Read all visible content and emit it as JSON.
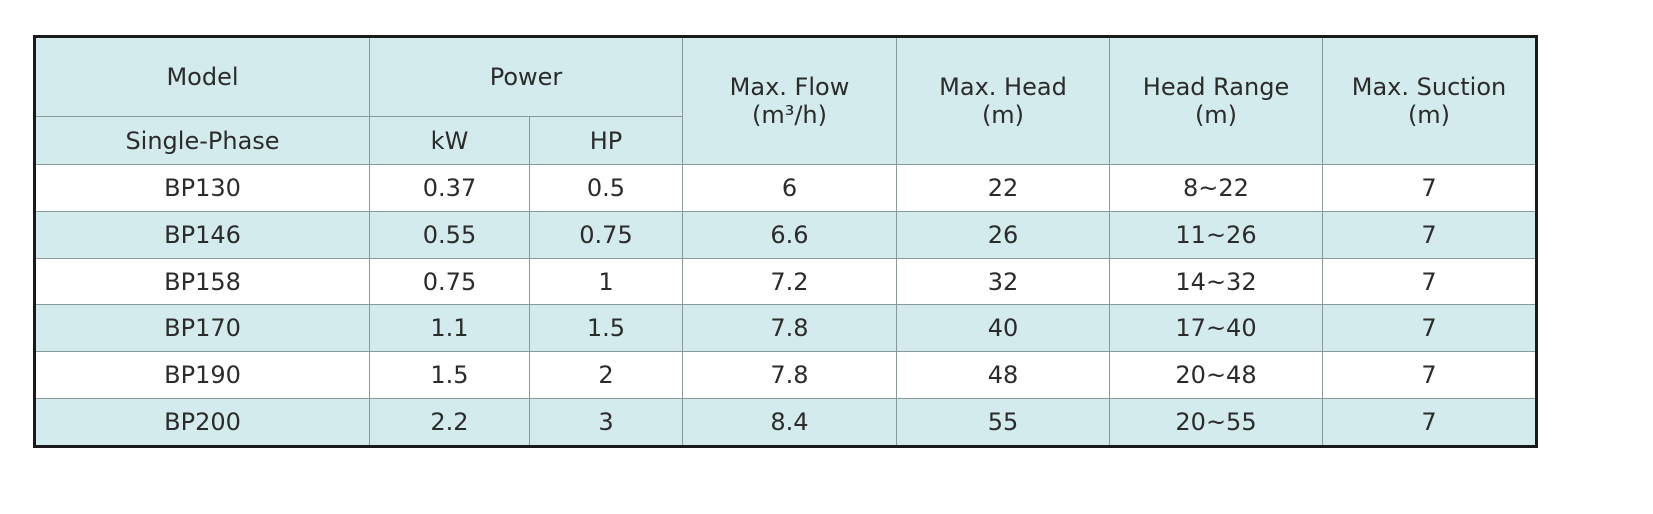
{
  "table": {
    "header": {
      "model": "Model",
      "phase": "Single-Phase",
      "power": "Power",
      "power_units": [
        "kW",
        "HP"
      ],
      "columns": [
        {
          "name": "Max. Flow",
          "unit": "(m³/h)"
        },
        {
          "name": "Max. Head",
          "unit": "(m)"
        },
        {
          "name": "Head Range",
          "unit": "(m)"
        },
        {
          "name": "Max. Suction",
          "unit": "(m)"
        }
      ]
    },
    "rows": [
      [
        "BP130",
        "0.37",
        "0.5",
        "6",
        "22",
        "8~22",
        "7"
      ],
      [
        "BP146",
        "0.55",
        "0.75",
        "6.6",
        "26",
        "11~26",
        "7"
      ],
      [
        "BP158",
        "0.75",
        "1",
        "7.2",
        "32",
        "14~32",
        "7"
      ],
      [
        "BP170",
        "1.1",
        "1.5",
        "7.8",
        "40",
        "17~40",
        "7"
      ],
      [
        "BP190",
        "1.5",
        "2",
        "7.8",
        "48",
        "20~48",
        "7"
      ],
      [
        "BP200",
        "2.2",
        "3",
        "8.4",
        "55",
        "20~55",
        "7"
      ]
    ]
  }
}
